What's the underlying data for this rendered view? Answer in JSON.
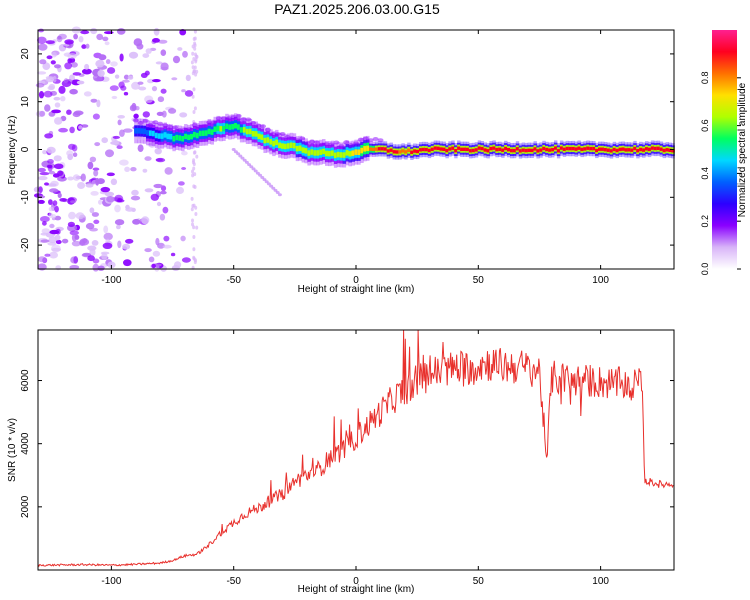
{
  "figure": {
    "title": "PAZ1.2025.206.03.00.G15"
  },
  "chart_data": [
    {
      "type": "heatmap",
      "title": "PAZ1.2025.206.03.00.G15",
      "xlabel": "Height of straight line (km)",
      "ylabel": "Frequency (Hz)",
      "xlim": [
        -130,
        130
      ],
      "ylim": [
        -25,
        25
      ],
      "x_ticks": [
        -100,
        -50,
        0,
        50,
        100
      ],
      "y_ticks": [
        -20,
        -10,
        0,
        10,
        20
      ],
      "colorbar": {
        "label": "Normalized spectral amplitude",
        "range": [
          0,
          1
        ],
        "ticks": [
          0.0,
          0.2,
          0.4,
          0.6,
          0.8
        ],
        "colors": [
          "#ffffff",
          "#d8b4f8",
          "#8a00ff",
          "#2d00ff",
          "#0060ff",
          "#00d8ff",
          "#00ff60",
          "#b0ff00",
          "#ffe000",
          "#ff7000",
          "#ff0020",
          "#ff2090"
        ]
      },
      "ridge": {
        "x": [
          -90,
          -85,
          -80,
          -75,
          -70,
          -65,
          -60,
          -55,
          -50,
          -45,
          -40,
          -35,
          -30,
          -25,
          -20,
          -15,
          -10,
          -5,
          0,
          5,
          10,
          20,
          30,
          50,
          70,
          90,
          110,
          130
        ],
        "y": [
          4,
          3.5,
          3,
          2.5,
          2.5,
          3,
          3.5,
          4.5,
          5,
          4,
          3,
          1.5,
          1,
          0.5,
          -0.5,
          -0.5,
          -1,
          -1,
          -0.5,
          0,
          0,
          -0.5,
          0,
          0,
          0,
          0,
          0,
          0
        ],
        "amplitude": [
          0.35,
          0.4,
          0.45,
          0.5,
          0.5,
          0.5,
          0.55,
          0.6,
          0.55,
          0.6,
          0.6,
          0.6,
          0.6,
          0.65,
          0.65,
          0.6,
          0.6,
          0.65,
          0.7,
          0.75,
          0.9,
          0.85,
          0.9,
          0.9,
          0.9,
          0.9,
          0.9,
          0.9
        ]
      },
      "noise_region_x": [
        -130,
        -68
      ]
    },
    {
      "type": "line",
      "xlabel": "Height of straight line (km)",
      "ylabel": "SNR (10 * v/v)",
      "xlim": [
        -130,
        130
      ],
      "ylim": [
        0,
        7600
      ],
      "x_ticks": [
        -100,
        -50,
        0,
        50,
        100
      ],
      "y_ticks": [
        2000,
        4000,
        6000
      ],
      "series_color": "#e8302c",
      "x": [
        -130,
        -120,
        -110,
        -100,
        -90,
        -80,
        -75,
        -70,
        -65,
        -60,
        -55,
        -50,
        -45,
        -40,
        -35,
        -30,
        -25,
        -20,
        -15,
        -10,
        -5,
        0,
        5,
        10,
        15,
        20,
        25,
        30,
        35,
        40,
        45,
        50,
        55,
        60,
        65,
        70,
        75,
        78,
        80,
        85,
        90,
        95,
        100,
        105,
        110,
        115,
        117,
        118,
        120,
        125,
        130
      ],
      "y": [
        150,
        160,
        170,
        150,
        180,
        220,
        300,
        450,
        500,
        800,
        1200,
        1500,
        1800,
        1950,
        2200,
        2400,
        2800,
        3000,
        3200,
        3600,
        3800,
        4200,
        4600,
        5000,
        5400,
        5700,
        6000,
        6200,
        6300,
        6400,
        6400,
        6500,
        6550,
        6450,
        6450,
        6400,
        6300,
        3500,
        6100,
        6050,
        6000,
        6000,
        5950,
        5900,
        5900,
        5850,
        5900,
        2800,
        2800,
        2700,
        2750
      ]
    }
  ]
}
